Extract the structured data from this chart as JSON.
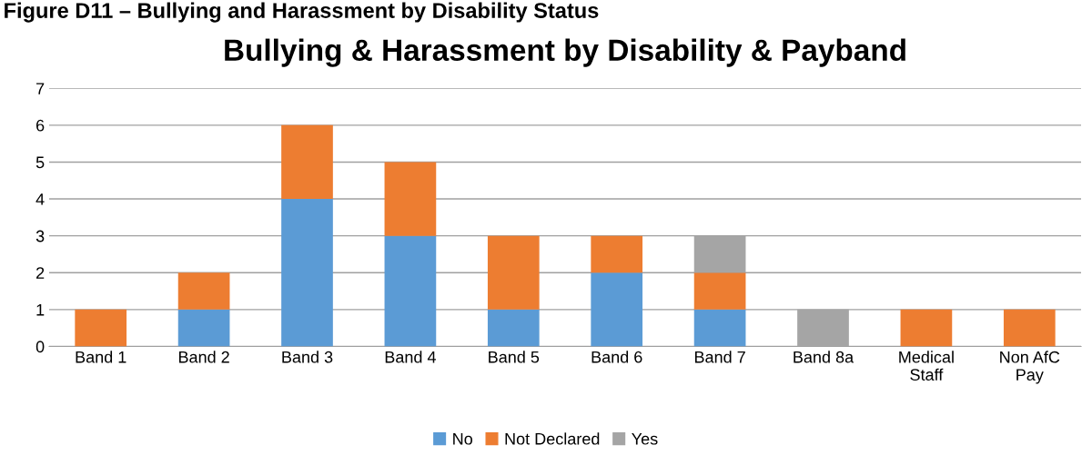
{
  "chart_data": {
    "type": "bar",
    "title": "Bullying & Harassment by Disability & Payband",
    "annotations": [
      "Figure D11 – Bullying and Harassment by Disability Status"
    ],
    "categories": [
      "Band 1",
      "Band 2",
      "Band 3",
      "Band 4",
      "Band 5",
      "Band 6",
      "Band 7",
      "Band 8a",
      "Medical\nStaff",
      "Non AfC\nPay"
    ],
    "stacked": true,
    "ylim": [
      0,
      7
    ],
    "yticks": [
      0,
      1,
      2,
      3,
      4,
      5,
      6,
      7
    ],
    "grid": "y",
    "legend": "bottom",
    "series": [
      {
        "name": "No",
        "color": "#5b9bd5",
        "values": [
          0,
          1,
          4,
          3,
          1,
          2,
          1,
          0,
          0,
          0
        ]
      },
      {
        "name": "Not Declared",
        "color": "#ed7d31",
        "values": [
          1,
          1,
          2,
          2,
          2,
          1,
          1,
          0,
          1,
          1
        ]
      },
      {
        "name": "Yes",
        "color": "#a5a5a5",
        "values": [
          0,
          0,
          0,
          0,
          0,
          0,
          1,
          1,
          0,
          0
        ]
      }
    ]
  }
}
